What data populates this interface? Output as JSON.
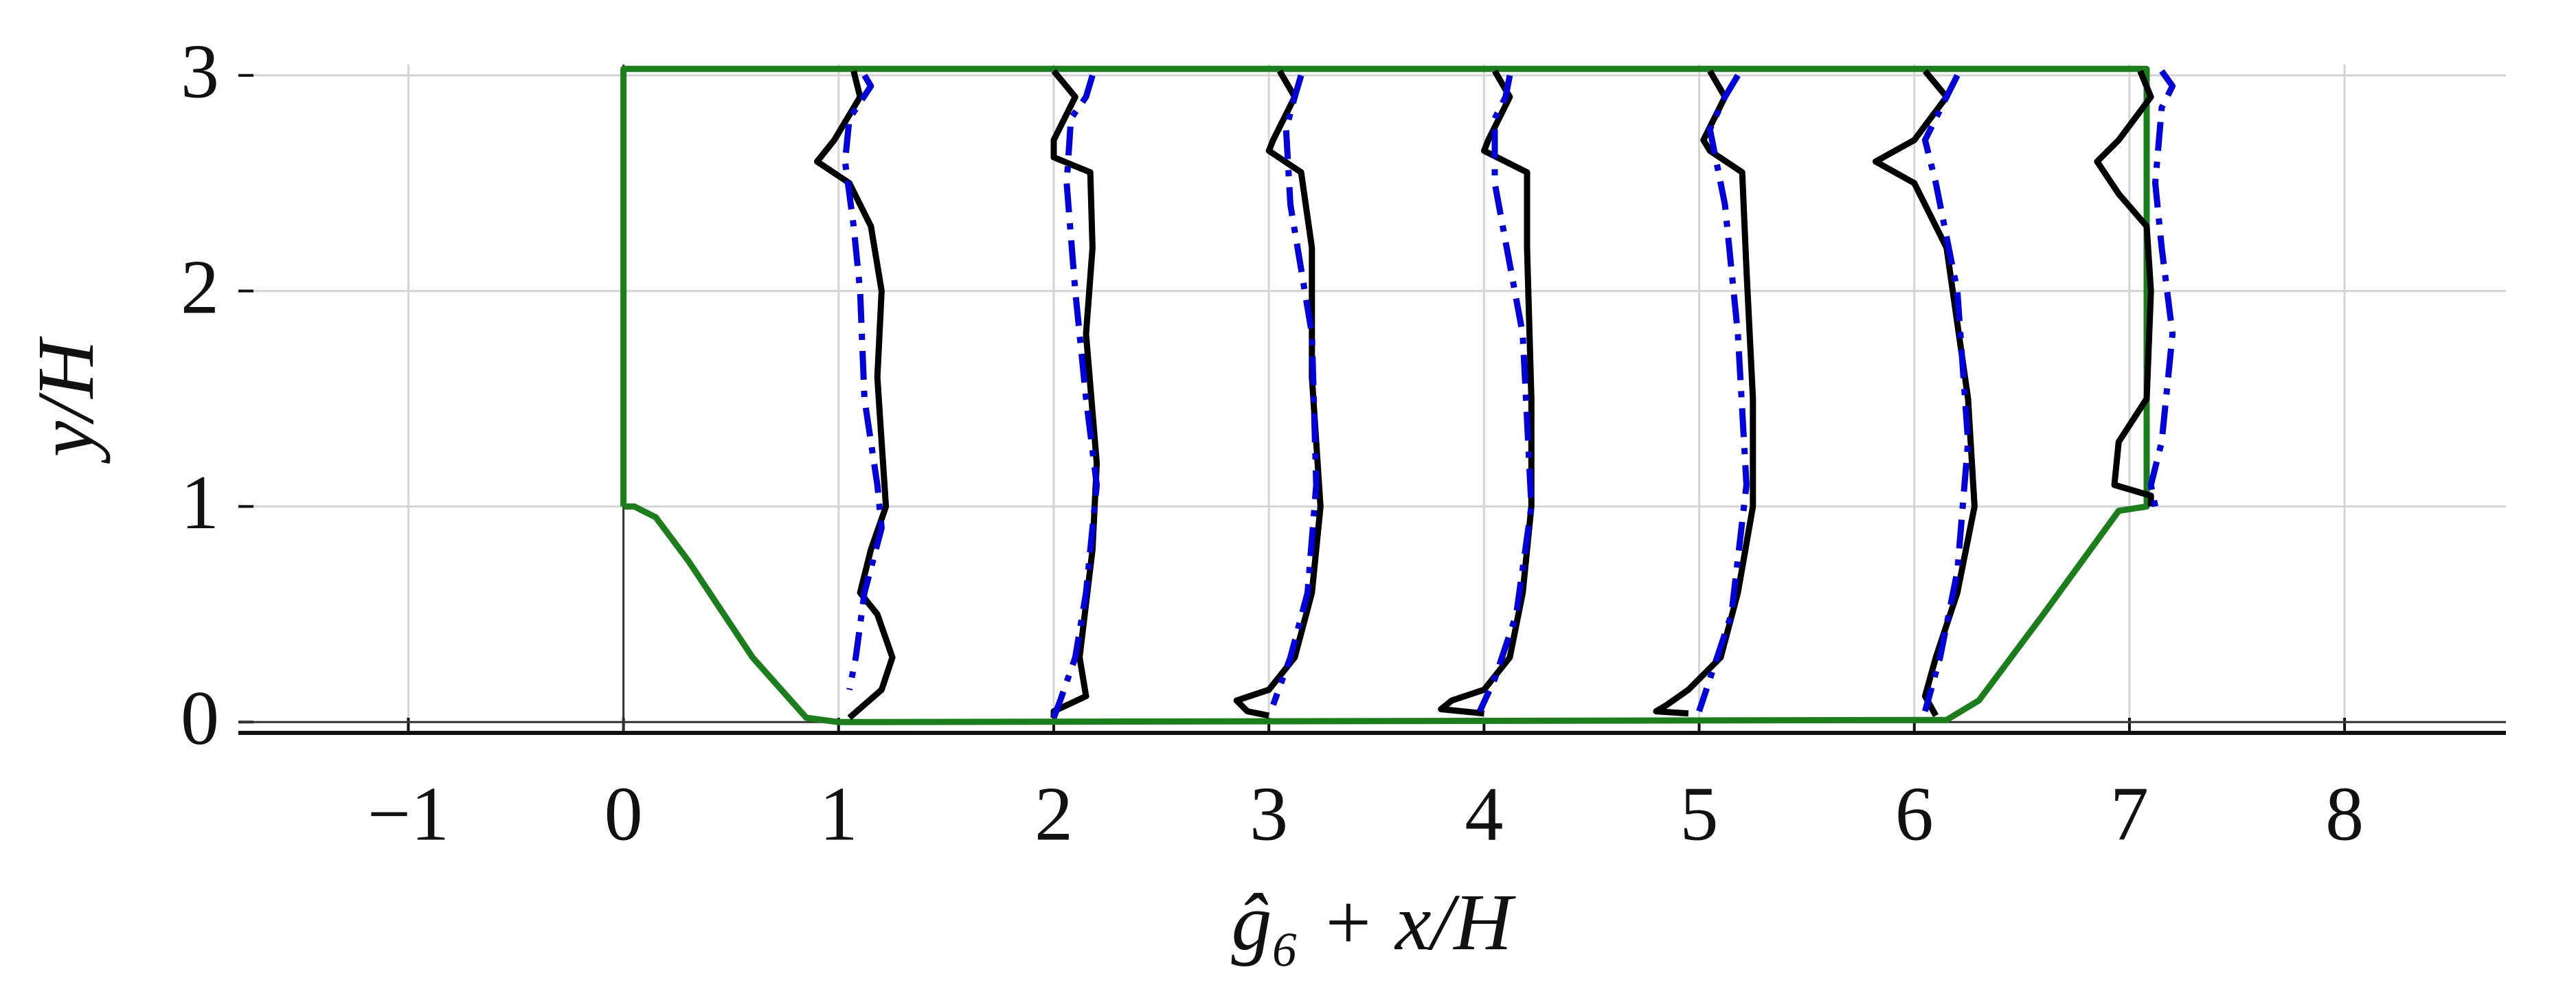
{
  "chart_data": {
    "type": "line",
    "xlabel": "ĝ₆ + x/H",
    "ylabel": "y/H",
    "xlim": [
      -1.79,
      8.75
    ],
    "ylim": [
      -0.05,
      3.05
    ],
    "xticks": [
      {
        "value": -1,
        "label": "−1"
      },
      0,
      1,
      2,
      3,
      4,
      5,
      6,
      7,
      8
    ],
    "yticks": [
      0,
      1,
      2,
      3
    ],
    "grid": true,
    "series": [
      {
        "color": "#1a7f1a",
        "line_style": "solid",
        "x": [
          0,
          0,
          7.08,
          7.08,
          6.95,
          6.6,
          6.3,
          6.15,
          1.0,
          0.85,
          0.6,
          0.3,
          0.15,
          0.05,
          0
        ],
        "values": [
          1,
          3.03,
          3.03,
          1.0,
          0.98,
          0.5,
          0.1,
          0.01,
          0.0,
          0.02,
          0.3,
          0.75,
          0.95,
          1.0,
          1
        ]
      },
      {
        "color": "#000000",
        "line_style": "solid",
        "x": [
          1.07,
          1.1,
          0.98,
          0.9,
          1.05,
          1.15,
          1.2,
          1.18,
          1.2,
          1.22,
          1.15,
          1.1,
          1.18,
          1.25,
          1.2,
          1.05
        ],
        "values": [
          3.02,
          2.9,
          2.7,
          2.6,
          2.5,
          2.3,
          2.0,
          1.6,
          1.3,
          1.0,
          0.8,
          0.6,
          0.5,
          0.3,
          0.15,
          0.02
        ]
      },
      {
        "color": "#0000dd",
        "line_style": "dashdot",
        "x": [
          1.12,
          1.15,
          1.05,
          1.03,
          1.07,
          1.1,
          1.12,
          1.18,
          1.2,
          1.12,
          1.08,
          1.05
        ],
        "values": [
          3.0,
          2.95,
          2.8,
          2.6,
          2.3,
          2.0,
          1.5,
          1.1,
          0.9,
          0.6,
          0.3,
          0.15
        ]
      },
      {
        "color": "#000000",
        "line_style": "solid",
        "x": [
          2.0,
          2.1,
          2.0,
          2.0,
          2.17,
          2.18,
          2.15,
          2.2,
          2.18,
          2.12,
          2.15,
          2.0,
          2.0
        ],
        "values": [
          3.02,
          2.9,
          2.7,
          2.62,
          2.55,
          2.2,
          1.8,
          1.2,
          0.8,
          0.3,
          0.12,
          0.05,
          0.02
        ]
      },
      {
        "color": "#0000dd",
        "line_style": "dashdot",
        "x": [
          2.18,
          2.15,
          2.08,
          2.06,
          2.1,
          2.15,
          2.2,
          2.15,
          2.1,
          2.03,
          2.0
        ],
        "values": [
          3.0,
          2.9,
          2.8,
          2.5,
          2.0,
          1.5,
          1.1,
          0.6,
          0.3,
          0.1,
          0.02
        ]
      },
      {
        "color": "#000000",
        "line_style": "solid",
        "x": [
          3.05,
          3.12,
          3.02,
          3.0,
          3.15,
          3.2,
          3.2,
          3.24,
          3.2,
          3.12,
          3.0,
          2.85,
          2.9,
          3.0
        ],
        "values": [
          3.02,
          2.9,
          2.7,
          2.65,
          2.55,
          2.2,
          1.6,
          1.0,
          0.6,
          0.3,
          0.15,
          0.1,
          0.05,
          0.03
        ]
      },
      {
        "color": "#0000dd",
        "line_style": "dashdot",
        "x": [
          3.15,
          3.12,
          3.08,
          3.1,
          3.2,
          3.22,
          3.18,
          3.1,
          3.02
        ],
        "values": [
          3.0,
          2.9,
          2.75,
          2.4,
          1.8,
          1.1,
          0.6,
          0.3,
          0.08
        ]
      },
      {
        "color": "#000000",
        "line_style": "solid",
        "x": [
          4.05,
          4.12,
          4.02,
          4.0,
          4.2,
          4.2,
          4.22,
          4.22,
          4.18,
          4.12,
          4.0,
          3.85,
          3.8,
          4.0
        ],
        "values": [
          3.02,
          2.9,
          2.7,
          2.65,
          2.55,
          2.2,
          1.5,
          1.0,
          0.6,
          0.3,
          0.15,
          0.1,
          0.06,
          0.04
        ]
      },
      {
        "color": "#0000dd",
        "line_style": "dashdot",
        "x": [
          4.12,
          4.1,
          4.05,
          4.05,
          4.18,
          4.22,
          4.15,
          4.05,
          3.98
        ],
        "values": [
          3.0,
          2.9,
          2.8,
          2.5,
          1.8,
          1.0,
          0.5,
          0.2,
          0.05
        ]
      },
      {
        "color": "#000000",
        "line_style": "solid",
        "x": [
          5.05,
          5.12,
          5.02,
          5.05,
          5.2,
          5.22,
          5.25,
          5.25,
          5.18,
          5.1,
          4.95,
          4.85,
          4.8,
          4.95
        ],
        "values": [
          3.02,
          2.9,
          2.7,
          2.65,
          2.55,
          2.1,
          1.5,
          1.0,
          0.6,
          0.3,
          0.15,
          0.08,
          0.05,
          0.04
        ]
      },
      {
        "color": "#0000dd",
        "line_style": "dashdot",
        "x": [
          5.18,
          5.12,
          5.05,
          5.12,
          5.18,
          5.22,
          5.15,
          5.05,
          5.0
        ],
        "values": [
          3.0,
          2.9,
          2.75,
          2.4,
          1.8,
          1.1,
          0.5,
          0.2,
          0.05
        ]
      },
      {
        "color": "#000000",
        "line_style": "solid",
        "x": [
          6.05,
          6.15,
          6.0,
          5.82,
          6.0,
          6.15,
          6.25,
          6.28,
          6.2,
          6.1,
          6.05,
          6.1
        ],
        "values": [
          3.02,
          2.9,
          2.7,
          2.6,
          2.5,
          2.2,
          1.5,
          1.0,
          0.6,
          0.3,
          0.12,
          0.03
        ]
      },
      {
        "color": "#0000dd",
        "line_style": "dashdot",
        "x": [
          6.2,
          6.15,
          6.05,
          6.1,
          6.2,
          6.25,
          6.2,
          6.12,
          6.05
        ],
        "values": [
          3.0,
          2.9,
          2.7,
          2.5,
          2.0,
          1.3,
          0.7,
          0.3,
          0.05
        ]
      },
      {
        "color": "#000000",
        "line_style": "solid",
        "x": [
          7.05,
          7.1,
          6.95,
          6.85,
          6.95,
          7.08,
          7.1,
          7.08,
          6.95,
          6.93,
          7.1,
          7.1
        ],
        "values": [
          3.02,
          2.9,
          2.7,
          2.6,
          2.45,
          2.3,
          2.0,
          1.5,
          1.3,
          1.1,
          1.05,
          1.0
        ]
      },
      {
        "color": "#0000dd",
        "line_style": "dashdot",
        "x": [
          7.15,
          7.2,
          7.15,
          7.12,
          7.15,
          7.2,
          7.15,
          7.1,
          7.12
        ],
        "values": [
          3.02,
          2.95,
          2.85,
          2.5,
          2.2,
          1.8,
          1.3,
          1.1,
          1.0
        ]
      }
    ]
  }
}
